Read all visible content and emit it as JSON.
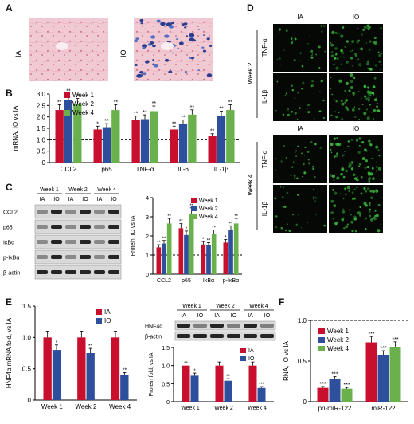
{
  "panels": {
    "A": {
      "letter": "A",
      "labels": [
        "IA",
        "IO"
      ]
    },
    "B": {
      "letter": "B"
    },
    "C": {
      "letter": "C"
    },
    "D": {
      "letter": "D",
      "col_labels": [
        "IA",
        "IO"
      ],
      "row_labels": [
        "TNF-α",
        "IL-1β"
      ],
      "weeks": [
        "Week 2",
        "Week 4"
      ]
    },
    "E": {
      "letter": "E"
    },
    "F": {
      "letter": "F"
    }
  },
  "colors": {
    "week1": "#c8102e",
    "week2": "#2e4f9c",
    "week4": "#6ab04c",
    "ia": "#c8102e",
    "io": "#2e4f9c",
    "fluor": "#3cbf3c"
  },
  "blot_C": {
    "weeks": [
      "Week 1",
      "Week 2",
      "Week 4"
    ],
    "lanes": [
      "IA",
      "IO",
      "IA",
      "IO",
      "IA",
      "IO"
    ],
    "proteins": [
      "CCL2",
      "p65",
      "IκBα",
      "p-IκBα",
      "β-actin"
    ]
  },
  "blot_E": {
    "weeks": [
      "Week 1",
      "Week 2",
      "Week 4"
    ],
    "lanes": [
      "IA",
      "IO",
      "IA",
      "IO",
      "IA",
      "IO"
    ],
    "proteins": [
      "HNF4α",
      "β-actin"
    ]
  },
  "chart_data": [
    {
      "id": "B",
      "type": "bar",
      "ylabel": "mRNA, IO vs IA",
      "categories": [
        "CCL2",
        "p65",
        "TNF-α",
        "IL-6",
        "IL-1β"
      ],
      "ylim": [
        0,
        3
      ],
      "yticks": [
        "0",
        "0.5",
        "1.0",
        "1.5",
        "2.0",
        "2.5",
        "3.0"
      ],
      "series": [
        {
          "name": "Week 1",
          "values": [
            2.3,
            1.45,
            1.85,
            1.45,
            1.15
          ],
          "sig": [
            "**",
            "*",
            "**",
            "**",
            "**"
          ]
        },
        {
          "name": "Week 2",
          "values": [
            2.75,
            1.55,
            1.9,
            1.7,
            2.05
          ],
          "sig": [
            "**",
            "**",
            "**",
            "**",
            "**"
          ]
        },
        {
          "name": "Week 4",
          "values": [
            2.55,
            2.3,
            2.25,
            2.1,
            2.3
          ],
          "sig": [
            "**",
            "**",
            "**",
            "**",
            "**"
          ]
        }
      ],
      "legend": "top-right",
      "reference_line": 1
    },
    {
      "id": "C",
      "type": "bar",
      "ylabel": "Protein, IO vs IA",
      "categories": [
        "CCL2",
        "p65",
        "IκBα",
        "p-IκBα"
      ],
      "ylim": [
        0,
        4
      ],
      "yticks": [
        "0",
        "1",
        "2",
        "3",
        "4"
      ],
      "series": [
        {
          "name": "Week 1",
          "values": [
            1.4,
            2.4,
            1.55,
            1.65
          ],
          "sig": [
            "**",
            "**",
            "*",
            "*"
          ]
        },
        {
          "name": "Week 2",
          "values": [
            1.6,
            2.05,
            1.5,
            2.3
          ],
          "sig": [
            "**",
            "*",
            "**",
            "**"
          ]
        },
        {
          "name": "Week 4",
          "values": [
            2.65,
            3.15,
            2.1,
            2.65
          ],
          "sig": [
            "**",
            "**",
            "**",
            "**"
          ]
        }
      ],
      "legend": "top-right",
      "reference_line": 1
    },
    {
      "id": "E1",
      "type": "bar",
      "ylabel": "HNF4α mRNA fold, vs IA",
      "categories": [
        "Week 1",
        "Week 2",
        "Week 4"
      ],
      "ylim": [
        0,
        1.5
      ],
      "yticks": [
        "0",
        "0.5",
        "1.0",
        "1.5"
      ],
      "series": [
        {
          "name": "IA",
          "values": [
            1.0,
            1.0,
            1.0
          ],
          "sig": [
            "",
            "",
            ""
          ]
        },
        {
          "name": "IO",
          "values": [
            0.8,
            0.75,
            0.4
          ],
          "sig": [
            "*",
            "**",
            "**"
          ]
        }
      ],
      "legend": "top-right"
    },
    {
      "id": "E2",
      "type": "bar",
      "ylabel": "Protein fold, vs IA",
      "categories": [
        "Week 1",
        "Week 2",
        "Week 4"
      ],
      "ylim": [
        0,
        1.5
      ],
      "yticks": [
        "0",
        "0.5",
        "1.0",
        "1.5"
      ],
      "series": [
        {
          "name": "IA",
          "values": [
            1.0,
            1.0,
            1.0
          ],
          "sig": [
            "",
            "",
            ""
          ]
        },
        {
          "name": "IO",
          "values": [
            0.72,
            0.58,
            0.38
          ],
          "sig": [
            "*",
            "**",
            "***"
          ]
        }
      ],
      "legend": "top-right"
    },
    {
      "id": "F",
      "type": "bar",
      "ylabel": "RNA, IO vs IA",
      "categories": [
        "pri-miR-122",
        "miR-122"
      ],
      "ylim": [
        0,
        1.0
      ],
      "yticks": [
        "0",
        "0.5",
        "1.0"
      ],
      "series": [
        {
          "name": "Week 1",
          "values": [
            0.17,
            0.73
          ],
          "sig": [
            "***",
            "***"
          ]
        },
        {
          "name": "Week 2",
          "values": [
            0.28,
            0.57
          ],
          "sig": [
            "***",
            "***"
          ]
        },
        {
          "name": "Week 4",
          "values": [
            0.16,
            0.67
          ],
          "sig": [
            "***",
            "***"
          ]
        }
      ],
      "legend": "top-left",
      "reference_line": 1
    }
  ]
}
